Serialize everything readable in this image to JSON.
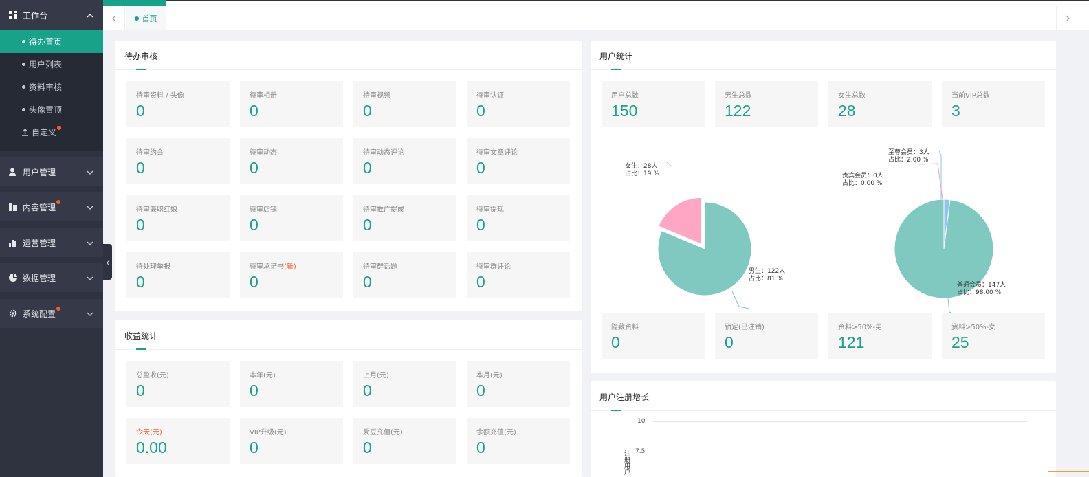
{
  "sidebar": {
    "workbench": {
      "label": "工作台",
      "icon": "dashboard-icon"
    },
    "sub_items": [
      {
        "label": "待办首页",
        "active": true
      },
      {
        "label": "用户列表"
      },
      {
        "label": "资料审核"
      },
      {
        "label": "头像置顶"
      }
    ],
    "custom": {
      "label": "自定义",
      "icon": "upload-icon",
      "badge": true
    },
    "groups": [
      {
        "label": "用户管理",
        "icon": "user-icon",
        "badge": false
      },
      {
        "label": "内容管理",
        "icon": "content-icon",
        "badge": true
      },
      {
        "label": "运营管理",
        "icon": "bar-chart-icon",
        "badge": false
      },
      {
        "label": "数据管理",
        "icon": "pie-chart-icon",
        "badge": false
      },
      {
        "label": "系统配置",
        "icon": "gear-icon",
        "badge": true
      }
    ]
  },
  "tabs": {
    "home_label": "首页"
  },
  "pending": {
    "title": "待办审核",
    "items": [
      {
        "label": "待审资料 / 头像",
        "value": "0"
      },
      {
        "label": "待审相册",
        "value": "0"
      },
      {
        "label": "待审视频",
        "value": "0"
      },
      {
        "label": "待审认证",
        "value": "0"
      },
      {
        "label": "待审约会",
        "value": "0"
      },
      {
        "label": "待审动态",
        "value": "0"
      },
      {
        "label": "待审动态评论",
        "value": "0"
      },
      {
        "label": "待审文章评论",
        "value": "0"
      },
      {
        "label": "待审兼职红娘",
        "value": "0"
      },
      {
        "label": "待审店铺",
        "value": "0"
      },
      {
        "label": "待审推广提成",
        "value": "0"
      },
      {
        "label": "待审提现",
        "value": "0"
      },
      {
        "label": "待处理举报",
        "value": "0"
      },
      {
        "label": "待审承诺书",
        "label_new": "(新)",
        "value": "0"
      },
      {
        "label": "待审群话题",
        "value": "0"
      },
      {
        "label": "待审群评论",
        "value": "0"
      }
    ]
  },
  "income": {
    "title": "收益统计",
    "items": [
      {
        "label": "总盈收(元)",
        "value": "0"
      },
      {
        "label": "本年(元)",
        "value": "0"
      },
      {
        "label": "上月(元)",
        "value": "0"
      },
      {
        "label": "本月(元)",
        "value": "0"
      },
      {
        "label": "今天(元)",
        "value": "0.00",
        "highlight": true
      },
      {
        "label": "VIP升级(元)",
        "value": "0"
      },
      {
        "label": "爱豆充值(元)",
        "value": "0"
      },
      {
        "label": "余额充值(元)",
        "value": "0"
      }
    ]
  },
  "user_stats": {
    "title": "用户统计",
    "top": [
      {
        "label": "用户总数",
        "value": "150"
      },
      {
        "label": "男生总数",
        "value": "122"
      },
      {
        "label": "女生总数",
        "value": "28"
      },
      {
        "label": "当前VIP总数",
        "value": "3"
      }
    ],
    "bottom": [
      {
        "label": "隐藏资料",
        "value": "0"
      },
      {
        "label": "锁定(已注销)",
        "value": "0"
      },
      {
        "label": "资料>50%-男",
        "value": "121"
      },
      {
        "label": "资料>50%-女",
        "value": "25"
      }
    ],
    "gender_pie_labels": {
      "female": "女生：28人\n占比：19 %",
      "male": "男生：122人\n占比：81 %"
    },
    "member_pie_labels": {
      "supreme": "至尊会员：3人\n占比：2.00 %",
      "vip": "贵宾会员：0人\n占比：0.00 %",
      "normal": "普通会员：147人\n占比：98.00 %"
    }
  },
  "chart_data": [
    {
      "type": "pie",
      "categories": [
        "女生",
        "男生"
      ],
      "values": [
        28,
        122
      ],
      "percent_labels": [
        "19 %",
        "81 %"
      ],
      "colors": [
        "#ffa6c4",
        "#7fc9c0"
      ]
    },
    {
      "type": "pie",
      "categories": [
        "至尊会员",
        "贵宾会员",
        "普通会员"
      ],
      "values": [
        3,
        0,
        147
      ],
      "percent_labels": [
        "2.00 %",
        "0.00 %",
        "98.00 %"
      ],
      "colors": [
        "#8ec3f5",
        "#f6a1c3",
        "#7fc9c0"
      ]
    },
    {
      "type": "line",
      "yticks": [
        "10",
        "7.5"
      ],
      "ylabel": "注册用户",
      "series": []
    }
  ],
  "reg_growth": {
    "title": "用户注册增长",
    "ytick_10": "10",
    "ytick_75": "7.5",
    "ylabel": "注册用户"
  }
}
